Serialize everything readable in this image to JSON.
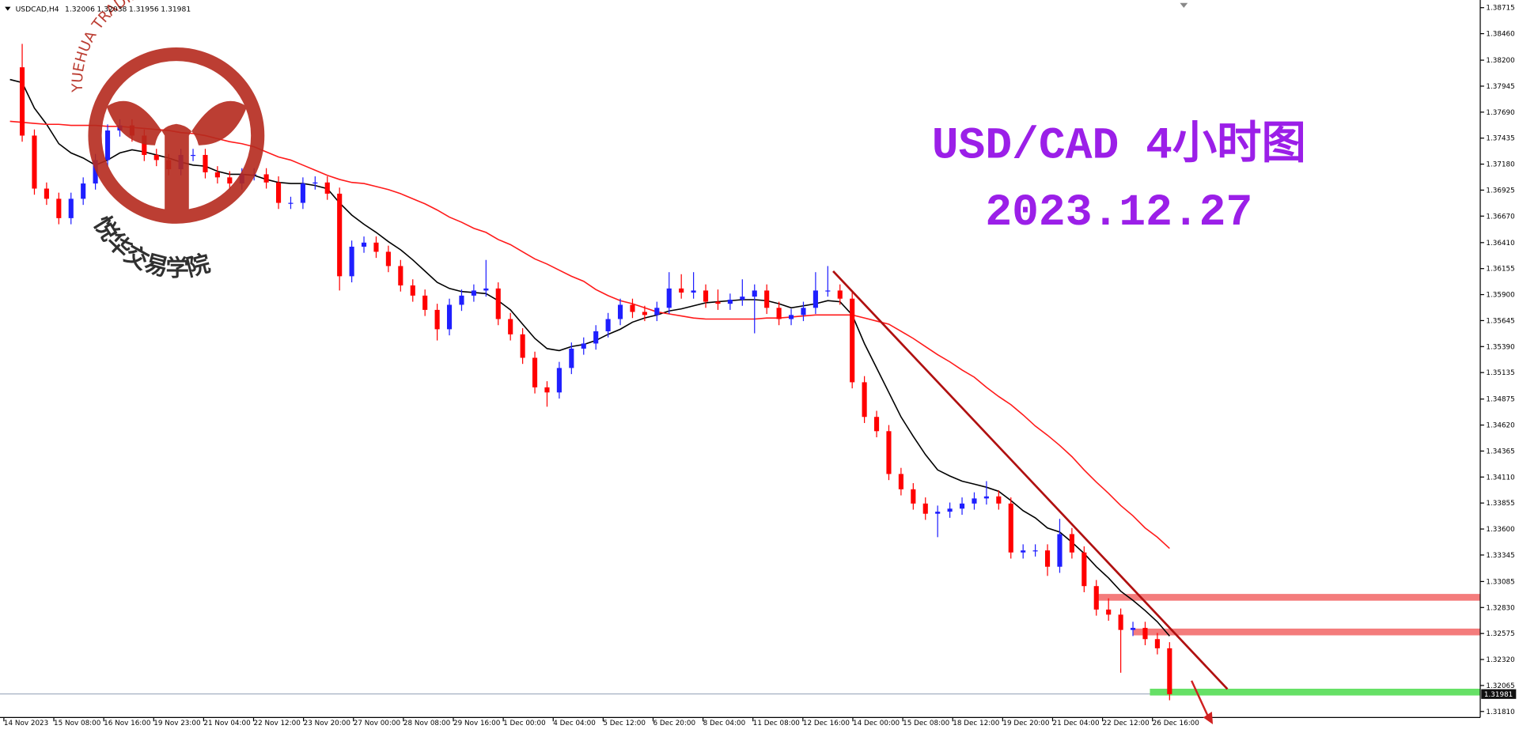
{
  "chart_data": {
    "type": "candlestick",
    "symbol": "USDCAD,H4",
    "ohlc": [
      1.32006,
      1.32038,
      1.31956,
      1.31981
    ],
    "annotation_title": "USD/CAD 4小时图",
    "annotation_date": "2023.12.27",
    "up_color": "#1f1fff",
    "down_color": "#ff0000",
    "ylim": [
      1.31751,
      1.3879
    ],
    "yticks": [
      1.38715,
      {
        "value": 1.3846,
        "label": "1.38460"
      },
      {
        "value": 1.382,
        "label": "1.38200"
      },
      1.37945,
      {
        "value": 1.3769,
        "label": "1.37690"
      },
      1.37435,
      {
        "value": 1.3718,
        "label": "1.37180"
      },
      1.36925,
      {
        "value": 1.3667,
        "label": "1.36670"
      },
      {
        "value": 1.3641,
        "label": "1.36410"
      },
      1.36155,
      {
        "value": 1.359,
        "label": "1.35900"
      },
      1.35645,
      {
        "value": 1.3539,
        "label": "1.35390"
      },
      1.35135,
      1.34875,
      {
        "value": 1.3462,
        "label": "1.34620"
      },
      1.34365,
      {
        "value": 1.3411,
        "label": "1.34110"
      },
      1.33855,
      {
        "value": 1.336,
        "label": "1.33600"
      },
      1.33345,
      1.33085,
      {
        "value": 1.3283,
        "label": "1.32830"
      },
      1.32575,
      {
        "value": 1.3232,
        "label": "1.32320"
      },
      1.32065,
      {
        "value": 1.3181,
        "label": "1.31810"
      }
    ],
    "x_labels": [
      "14 Nov 2023",
      "15 Nov 08:00",
      "16 Nov 16:00",
      "19 Nov 23:00",
      "21 Nov 04:00",
      "22 Nov 12:00",
      "23 Nov 20:00",
      "27 Nov 00:00",
      "28 Nov 08:00",
      "29 Nov 16:00",
      "1 Dec 00:00",
      "4 Dec 04:00",
      "5 Dec 12:00",
      "6 Dec 20:00",
      "8 Dec 04:00",
      "11 Dec 08:00",
      "12 Dec 16:00",
      "14 Dec 00:00",
      "15 Dec 08:00",
      "18 Dec 12:00",
      "19 Dec 20:00",
      "21 Dec 04:00",
      "22 Dec 12:00",
      "26 Dec 16:00"
    ],
    "close": [
      1.3813,
      1.3746,
      1.3694,
      1.3684,
      1.3665,
      1.3684,
      1.3699,
      1.3722,
      1.3751,
      1.3756,
      1.3746,
      1.3727,
      1.3722,
      1.3713,
      1.3727,
      1.3727,
      1.371,
      1.3705,
      1.3699,
      1.3708,
      1.3708,
      1.37,
      1.368,
      1.368,
      1.3699,
      1.37,
      1.3689,
      1.3608,
      1.3637,
      1.3641,
      1.3632,
      1.3618,
      1.3599,
      1.3589,
      1.3575,
      1.3556,
      1.358,
      1.3589,
      1.3594,
      1.3596,
      1.3566,
      1.3551,
      1.3528,
      1.3499,
      1.3494,
      1.3518,
      1.3537,
      1.3542,
      1.3554,
      1.3566,
      1.358,
      1.3573,
      1.357,
      1.3577,
      1.3596,
      1.3592,
      1.3594,
      1.3583,
      1.3581,
      1.3585,
      1.3588,
      1.3594,
      1.3577,
      1.3566,
      1.357,
      1.3577,
      1.3594,
      1.3594,
      1.3586,
      1.3504,
      1.347,
      1.3456,
      1.3414,
      1.3399,
      1.3385,
      1.3375,
      1.3377,
      1.338,
      1.3385,
      1.339,
      1.3392,
      1.3385,
      1.3337,
      1.3339,
      1.3339,
      1.3323,
      1.3355,
      1.3337,
      1.3304,
      1.3281,
      1.3276,
      1.3261,
      1.3263,
      1.3252,
      1.3243,
      1.3198
    ],
    "high": [
      null,
      1.3836,
      1.3752,
      1.37,
      1.369,
      1.369,
      1.3705,
      1.3728,
      1.3757,
      1.3762,
      1.3762,
      1.3752,
      1.3733,
      1.3728,
      1.3733,
      1.3733,
      1.3733,
      1.3716,
      1.3711,
      1.3714,
      1.3714,
      1.3714,
      1.3706,
      1.3686,
      1.3705,
      1.3706,
      1.3706,
      1.3695,
      1.3643,
      1.3647,
      1.3647,
      1.3638,
      1.3624,
      1.3605,
      1.3595,
      1.3581,
      1.3586,
      1.3595,
      1.36,
      1.3624,
      1.3602,
      1.3572,
      1.3557,
      1.3534,
      1.3505,
      1.3524,
      1.3543,
      1.3548,
      1.356,
      1.3572,
      1.3586,
      1.3586,
      1.3579,
      1.3583,
      1.3612,
      1.361,
      1.3612,
      1.36,
      1.3595,
      1.3591,
      1.3605,
      1.36,
      1.36,
      1.3583,
      1.3576,
      1.3583,
      1.3612,
      1.3618,
      1.36,
      1.3592,
      1.351,
      1.3476,
      1.3462,
      1.342,
      1.3405,
      1.3391,
      1.3383,
      1.3386,
      1.3391,
      1.3396,
      1.3407,
      1.3398,
      1.3391,
      1.3345,
      1.3345,
      1.3345,
      1.337,
      1.3361,
      1.3343,
      1.331,
      1.3292,
      1.3282,
      1.3269,
      1.3269,
      1.3258,
      1.3249
    ],
    "low": [
      null,
      1.374,
      1.3688,
      1.3678,
      1.3659,
      1.3659,
      1.3678,
      1.3693,
      1.3716,
      1.3745,
      1.374,
      1.3721,
      1.3716,
      1.3707,
      1.3707,
      1.3721,
      1.3704,
      1.3699,
      1.3693,
      1.3693,
      1.3702,
      1.3694,
      1.3674,
      1.3674,
      1.3674,
      1.3693,
      1.3683,
      1.3594,
      1.3602,
      1.3631,
      1.3626,
      1.3612,
      1.3593,
      1.3583,
      1.3569,
      1.3545,
      1.355,
      1.3574,
      1.3583,
      1.3588,
      1.356,
      1.3545,
      1.3522,
      1.3493,
      1.348,
      1.3488,
      1.3512,
      1.3531,
      1.3536,
      1.3548,
      1.356,
      1.3567,
      1.3564,
      1.3564,
      1.3571,
      1.3586,
      1.3586,
      1.3577,
      1.3575,
      1.3575,
      1.3579,
      1.3552,
      1.3571,
      1.356,
      1.356,
      1.3564,
      1.3571,
      1.3588,
      1.358,
      1.3498,
      1.3464,
      1.345,
      1.3408,
      1.3393,
      1.3379,
      1.3369,
      1.3352,
      1.3371,
      1.3374,
      1.3379,
      1.3384,
      1.3379,
      1.3331,
      1.3331,
      1.3333,
      1.3314,
      1.3317,
      1.3331,
      1.3298,
      1.3275,
      1.327,
      1.3219,
      1.3255,
      1.3246,
      1.3237,
      1.3192
    ],
    "moving_averages": [
      {
        "color": "#000000",
        "values": [
          1.3801,
          1.3798,
          1.3773,
          1.3757,
          1.3738,
          1.3729,
          1.3724,
          1.3717,
          1.3722,
          1.3729,
          1.3732,
          1.373,
          1.3727,
          1.3724,
          1.372,
          1.3717,
          1.3716,
          1.3711,
          1.3708,
          1.3708,
          1.3707,
          1.3703,
          1.37,
          1.3699,
          1.3699,
          1.3697,
          1.3694,
          1.368,
          1.3668,
          1.3659,
          1.3651,
          1.3642,
          1.3634,
          1.3624,
          1.3613,
          1.3602,
          1.3596,
          1.3593,
          1.3592,
          1.3591,
          1.3584,
          1.3575,
          1.3561,
          1.3547,
          1.3537,
          1.3535,
          1.3539,
          1.3541,
          1.3545,
          1.3551,
          1.3556,
          1.3563,
          1.3567,
          1.357,
          1.3574,
          1.3576,
          1.3579,
          1.3582,
          1.3583,
          1.3584,
          1.3585,
          1.3585,
          1.3584,
          1.3581,
          1.3577,
          1.3579,
          1.3581,
          1.3584,
          1.3583,
          1.357,
          1.3542,
          1.3518,
          1.3494,
          1.347,
          1.3451,
          1.3433,
          1.3418,
          1.3412,
          1.3407,
          1.3404,
          1.3401,
          1.3397,
          1.3388,
          1.3378,
          1.3371,
          1.3361,
          1.3357,
          1.3347,
          1.3336,
          1.3323,
          1.3312,
          1.3299,
          1.329,
          1.328,
          1.3269,
          1.3255
        ]
      },
      {
        "color": "#ff1a1a",
        "values": [
          1.376,
          1.3759,
          1.3758,
          1.3757,
          1.3757,
          1.3756,
          1.3756,
          1.3756,
          1.3755,
          1.3755,
          1.3754,
          1.3753,
          1.3752,
          1.3751,
          1.3749,
          1.3748,
          1.3746,
          1.3743,
          1.374,
          1.3738,
          1.3735,
          1.373,
          1.3725,
          1.3722,
          1.3717,
          1.3712,
          1.3707,
          1.3703,
          1.37,
          1.3699,
          1.3696,
          1.3693,
          1.3689,
          1.3684,
          1.3679,
          1.3673,
          1.3666,
          1.3661,
          1.3655,
          1.3651,
          1.3644,
          1.3639,
          1.3632,
          1.3625,
          1.362,
          1.3614,
          1.3608,
          1.3603,
          1.3595,
          1.3589,
          1.3584,
          1.3581,
          1.3577,
          1.3573,
          1.3571,
          1.3569,
          1.3567,
          1.3566,
          1.3566,
          1.3566,
          1.3566,
          1.3566,
          1.3567,
          1.3567,
          1.3568,
          1.3569,
          1.357,
          1.357,
          1.357,
          1.357,
          1.3567,
          1.3564,
          1.3561,
          1.3554,
          1.3547,
          1.3539,
          1.3531,
          1.3524,
          1.3516,
          1.3509,
          1.3499,
          1.349,
          1.3482,
          1.3472,
          1.3461,
          1.3452,
          1.3442,
          1.3431,
          1.3418,
          1.3406,
          1.3395,
          1.3383,
          1.3373,
          1.3361,
          1.3352,
          1.3341
        ]
      }
    ],
    "trend_line": {
      "color": "#b01010",
      "values": [
        1.3613,
        1.3203
      ]
    },
    "levels": [
      {
        "value": 1.3293,
        "color": "#f47c7c"
      },
      {
        "value": 1.3259,
        "color": "#f47c7c"
      },
      {
        "value": 1.32,
        "color": "#66e066"
      }
    ],
    "current_price": 1.31981
  },
  "watermark": {
    "title": "YUEHUA TRADING ACADEMY",
    "name": "悦华交易学院"
  }
}
